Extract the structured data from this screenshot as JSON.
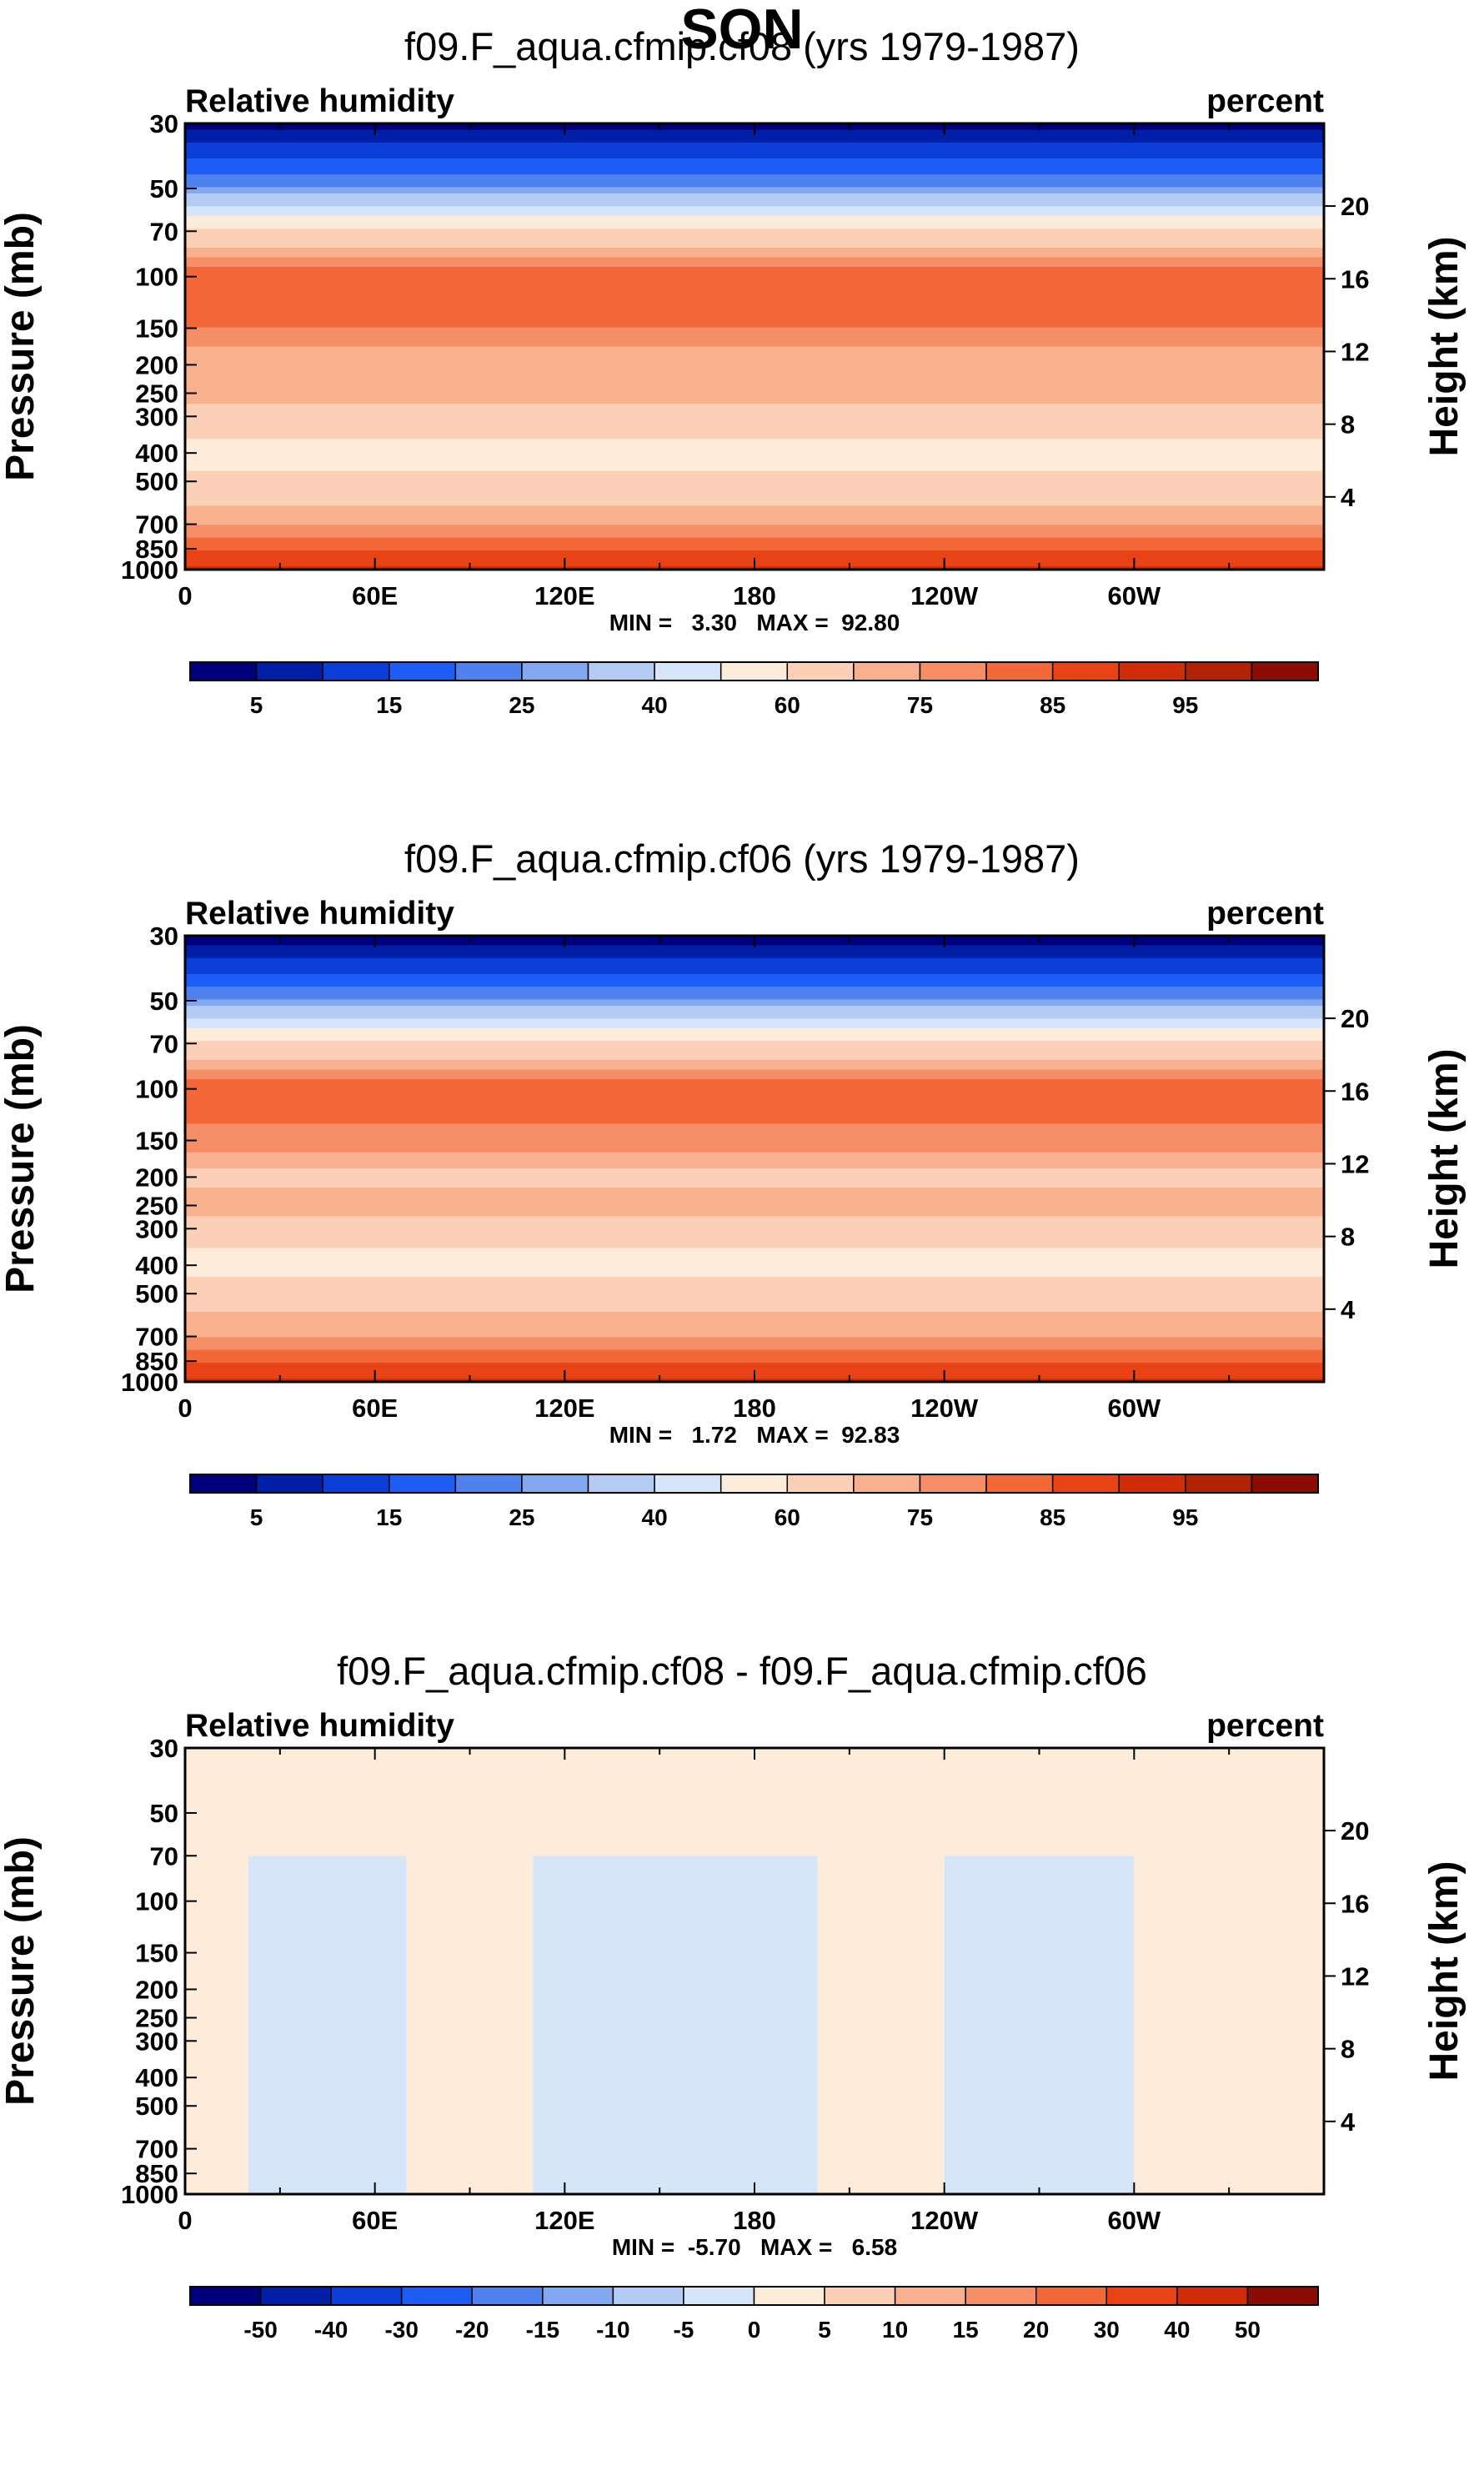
{
  "figure_title": "SON",
  "colors": {
    "rh_levels": [
      "#00007d",
      "#001fa6",
      "#0a3ed6",
      "#1e5df5",
      "#4f82ef",
      "#83a8ef",
      "#b4cbf4",
      "#d6e5fa",
      "#fdecda",
      "#fcd0b6",
      "#f9b08f",
      "#f58e67",
      "#f36838",
      "#e84316",
      "#cf2d09",
      "#b22207",
      "#8b0b05"
    ],
    "diff_levels": [
      "#00007d",
      "#001fa6",
      "#0a3ed6",
      "#1e5df5",
      "#4f82ef",
      "#83a8ef",
      "#b4cbf4",
      "#d6e5fa",
      "#fdecda",
      "#fcd0b6",
      "#f9b08f",
      "#f58e67",
      "#f36838",
      "#e84316",
      "#cf2d09",
      "#8b0b05"
    ]
  },
  "chart_data": [
    {
      "type": "heatmap",
      "title": "f09.F_aqua.cfmip.cf08 (yrs 1979-1987)",
      "left_label": "Relative humidity",
      "right_label": "percent",
      "ylabel": "Pressure (mb)",
      "ylabel_right": "Height (km)",
      "xticks": [
        "0",
        "60E",
        "120E",
        "180",
        "120W",
        "60W"
      ],
      "yticks": [
        "30",
        "50",
        "70",
        "100",
        "150",
        "200",
        "250",
        "300",
        "400",
        "500",
        "700",
        "850",
        "1000"
      ],
      "yticks_right": [
        "20",
        "16",
        "12",
        "8",
        "4"
      ],
      "ylim": [
        30,
        1000
      ],
      "minmax_text": "MIN =   3.30   MAX =  92.80",
      "min": 3.3,
      "max": 92.8,
      "colorbar_labels": [
        "5",
        "15",
        "25",
        "40",
        "60",
        "75",
        "85",
        "95"
      ],
      "profile_mean_rh": [
        {
          "p": 30,
          "rh": 3
        },
        {
          "p": 50,
          "rh": 25
        },
        {
          "p": 70,
          "rh": 62
        },
        {
          "p": 100,
          "rh": 84
        },
        {
          "p": 150,
          "rh": 80
        },
        {
          "p": 200,
          "rh": 70
        },
        {
          "p": 250,
          "rh": 74
        },
        {
          "p": 300,
          "rh": 66
        },
        {
          "p": 400,
          "rh": 56
        },
        {
          "p": 500,
          "rh": 63
        },
        {
          "p": 700,
          "rh": 75
        },
        {
          "p": 850,
          "rh": 85
        },
        {
          "p": 1000,
          "rh": 91
        }
      ]
    },
    {
      "type": "heatmap",
      "title": "f09.F_aqua.cfmip.cf06 (yrs 1979-1987)",
      "left_label": "Relative humidity",
      "right_label": "percent",
      "ylabel": "Pressure (mb)",
      "ylabel_right": "Height (km)",
      "xticks": [
        "0",
        "60E",
        "120E",
        "180",
        "120W",
        "60W"
      ],
      "yticks": [
        "30",
        "50",
        "70",
        "100",
        "150",
        "200",
        "250",
        "300",
        "400",
        "500",
        "700",
        "850",
        "1000"
      ],
      "yticks_right": [
        "20",
        "16",
        "12",
        "8",
        "4"
      ],
      "ylim": [
        30,
        1000
      ],
      "minmax_text": "MIN =   1.72   MAX =  92.83",
      "min": 1.72,
      "max": 92.83,
      "colorbar_labels": [
        "5",
        "15",
        "25",
        "40",
        "60",
        "75",
        "85",
        "95"
      ],
      "profile_mean_rh": [
        {
          "p": 30,
          "rh": 2
        },
        {
          "p": 50,
          "rh": 25
        },
        {
          "p": 70,
          "rh": 62
        },
        {
          "p": 100,
          "rh": 84
        },
        {
          "p": 150,
          "rh": 78
        },
        {
          "p": 200,
          "rh": 68
        },
        {
          "p": 250,
          "rh": 74
        },
        {
          "p": 300,
          "rh": 64
        },
        {
          "p": 400,
          "rh": 56
        },
        {
          "p": 500,
          "rh": 66
        },
        {
          "p": 700,
          "rh": 75
        },
        {
          "p": 850,
          "rh": 85
        },
        {
          "p": 1000,
          "rh": 91
        }
      ]
    },
    {
      "type": "heatmap",
      "title": "f09.F_aqua.cfmip.cf08 - f09.F_aqua.cfmip.cf06",
      "left_label": "Relative humidity",
      "right_label": "percent",
      "ylabel": "Pressure (mb)",
      "ylabel_right": "Height (km)",
      "xticks": [
        "0",
        "60E",
        "120E",
        "180",
        "120W",
        "60W"
      ],
      "yticks": [
        "30",
        "50",
        "70",
        "100",
        "150",
        "200",
        "250",
        "300",
        "400",
        "500",
        "700",
        "850",
        "1000"
      ],
      "yticks_right": [
        "20",
        "16",
        "12",
        "8",
        "4"
      ],
      "ylim": [
        30,
        1000
      ],
      "minmax_text": "MIN =  -5.70   MAX =   6.58",
      "min": -5.7,
      "max": 6.58,
      "colorbar_labels": [
        "-50",
        "-40",
        "-30",
        "-20",
        "-15",
        "-10",
        "-5",
        "0",
        "5",
        "10",
        "15",
        "20",
        "30",
        "40",
        "50"
      ],
      "difference_regions": [
        {
          "lon_range": [
            0,
            20
          ],
          "sign": "positive",
          "value": 2
        },
        {
          "lon_range": [
            20,
            70
          ],
          "sign": "negative",
          "value": -2
        },
        {
          "lon_range": [
            70,
            110
          ],
          "sign": "positive",
          "value": 2
        },
        {
          "lon_range": [
            110,
            200
          ],
          "sign": "negative",
          "value": -2
        },
        {
          "lon_range": [
            200,
            240
          ],
          "sign": "positive",
          "value": 2
        },
        {
          "lon_range": [
            240,
            300
          ],
          "sign": "negative",
          "value": -2
        },
        {
          "lon_range": [
            300,
            360
          ],
          "sign": "positive",
          "value": 2
        }
      ]
    }
  ]
}
